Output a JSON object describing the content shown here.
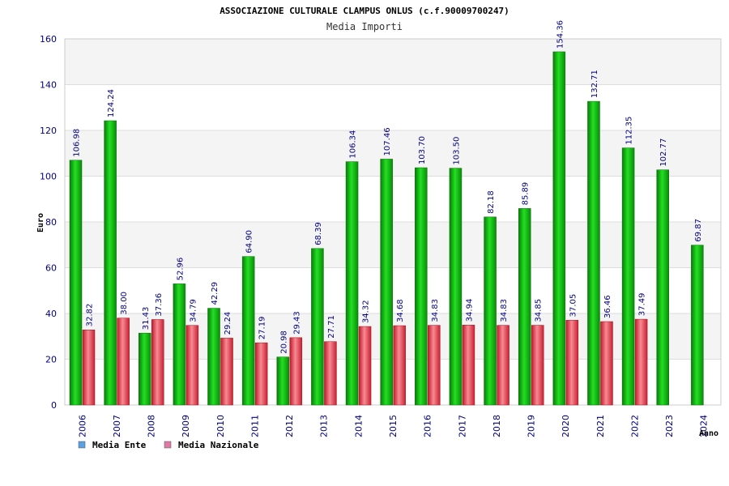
{
  "chart_data": {
    "type": "bar",
    "title": "ASSOCIAZIONE CULTURALE CLAMPUS ONLUS (c.f.90009700247)",
    "subtitle": "Media Importi",
    "ylabel": "Euro",
    "xlabel": "Anno",
    "ylim": [
      0,
      160
    ],
    "yticks": [
      0,
      20,
      40,
      60,
      80,
      100,
      120,
      140,
      160
    ],
    "grid": true,
    "legend_position": "bottom-left",
    "categories": [
      "2006",
      "2007",
      "2008",
      "2009",
      "2010",
      "2011",
      "2012",
      "2013",
      "2014",
      "2015",
      "2016",
      "2017",
      "2018",
      "2019",
      "2020",
      "2021",
      "2022",
      "2023",
      "2024"
    ],
    "series": [
      {
        "name": "Media Ente",
        "color": "#00b000",
        "legend_color": "#5aa0e6",
        "values": [
          106.98,
          124.24,
          31.43,
          52.96,
          42.29,
          64.9,
          20.98,
          68.39,
          106.34,
          107.46,
          103.7,
          103.5,
          82.18,
          85.89,
          154.36,
          132.71,
          112.35,
          102.77,
          69.87
        ],
        "labels": [
          "106.98",
          "124.24",
          "31.43",
          "52.96",
          "42.29",
          "64.90",
          "20.98",
          "68.39",
          "106.34",
          "107.46",
          "103.70",
          "103.50",
          "82.18",
          "85.89",
          "154.36",
          "132.71",
          "112.35",
          "102.77",
          "69.87"
        ]
      },
      {
        "name": "Media Nazionale",
        "color": "#e03a4a",
        "legend_color": "#e079a8",
        "values": [
          32.82,
          38.0,
          37.36,
          34.79,
          29.24,
          27.19,
          29.43,
          27.71,
          34.32,
          34.68,
          34.83,
          34.94,
          34.83,
          34.85,
          37.05,
          36.46,
          37.49,
          null,
          null
        ],
        "labels": [
          "32.82",
          "38.00",
          "37.36",
          "34.79",
          "29.24",
          "27.19",
          "29.43",
          "27.71",
          "34.32",
          "34.68",
          "34.83",
          "34.94",
          "34.83",
          "34.85",
          "37.05",
          "36.46",
          "37.49",
          null,
          null
        ]
      }
    ]
  }
}
